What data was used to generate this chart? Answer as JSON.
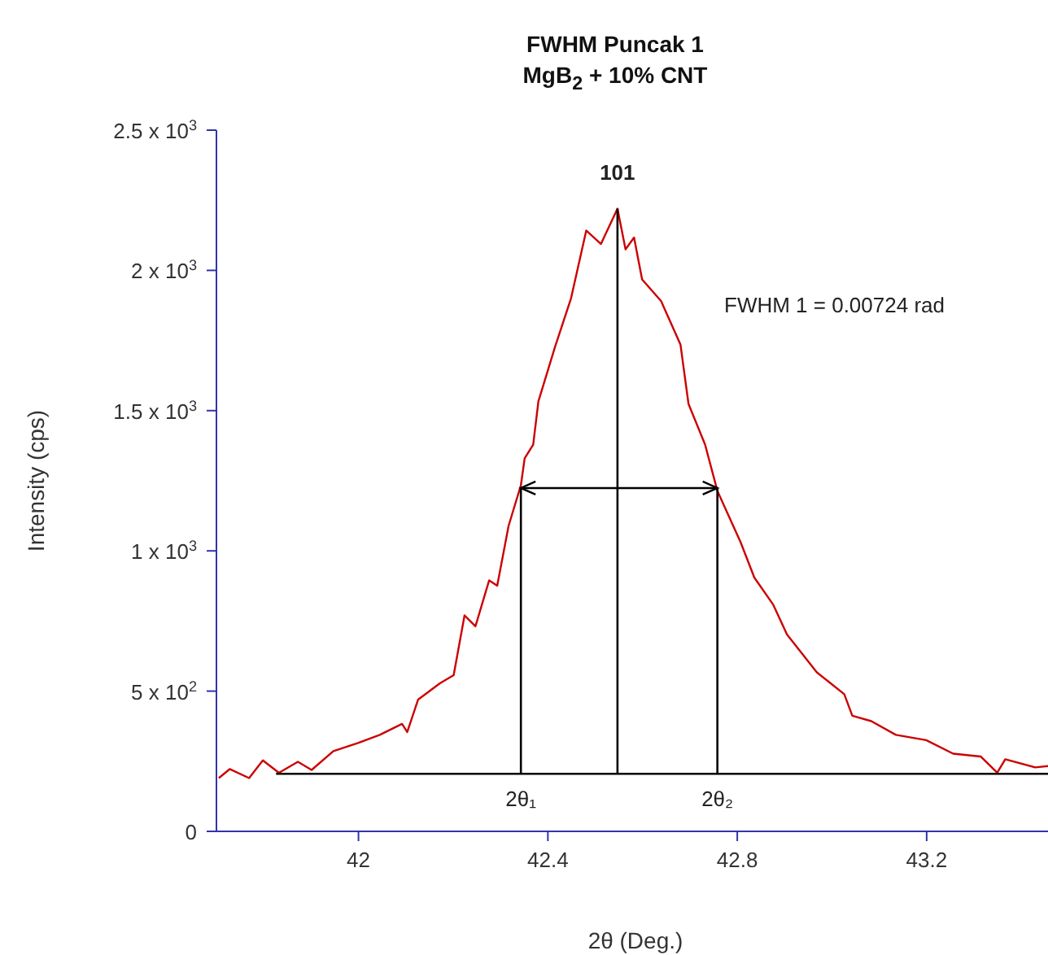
{
  "chart_data": {
    "type": "line",
    "title": "FWHM Puncak 1",
    "subtitle": "MgB$_{2}$ + 10% CNT",
    "xlabel": "2θ (Deg.)",
    "ylabel": "Intensity (cps)",
    "xlim": [
      41.7,
      43.47
    ],
    "xticks": [
      42,
      42.4,
      42.8,
      43.2
    ],
    "ylim": [
      0,
      2500
    ],
    "yticks": [
      0,
      {
        "value": 500,
        "label": "5 x 10$^{2}$"
      },
      {
        "value": 1000,
        "label": "1 x 10$^{3}$"
      },
      {
        "value": 1500,
        "label": "1.5 x 10$^{3}$"
      },
      {
        "value": 2000,
        "label": "2 x 10$^{3}$"
      },
      {
        "value": 2500,
        "label": "2.5 x 10$^{3}$"
      }
    ],
    "grid": false,
    "marker": "none",
    "series": [
      {
        "color": "#cc0000",
        "x": [
          41.705,
          41.728,
          41.769,
          41.798,
          41.832,
          41.872,
          41.901,
          41.947,
          41.999,
          42.045,
          42.092,
          42.103,
          42.126,
          42.172,
          42.201,
          42.224,
          42.247,
          42.276,
          42.293,
          42.317,
          42.343,
          42.351,
          42.369,
          42.38,
          42.415,
          42.449,
          42.481,
          42.512,
          42.547,
          42.564,
          42.582,
          42.599,
          42.639,
          42.68,
          42.697,
          42.732,
          42.758,
          42.807,
          42.836,
          42.876,
          42.905,
          42.968,
          43.026,
          43.043,
          43.083,
          43.135,
          43.199,
          43.256,
          43.314,
          43.349,
          43.366,
          43.429,
          43.464
        ],
        "values": [
          190,
          222,
          190,
          253,
          209,
          248,
          219,
          286,
          315,
          344,
          383,
          354,
          470,
          528,
          557,
          770,
          731,
          895,
          876,
          1089,
          1234,
          1330,
          1379,
          1533,
          1727,
          1901,
          2142,
          2094,
          2220,
          2075,
          2117,
          1968,
          1891,
          1736,
          1524,
          1379,
          1214,
          1031,
          905,
          808,
          702,
          567,
          489,
          412,
          393,
          344,
          325,
          277,
          267,
          209,
          257,
          228,
          234
        ]
      },
      {
        "color": "#000000",
        "x": [
          41.826,
          43.464
        ],
        "values": [
          205,
          205
        ]
      },
      {
        "color": "#000000",
        "x": [
          42.343,
          42.343
        ],
        "values": [
          205,
          1224
        ]
      },
      {
        "color": "#000000",
        "x": [
          42.547,
          42.547
        ],
        "values": [
          205,
          2220
        ]
      },
      {
        "color": "#000000",
        "x": [
          42.758,
          42.758
        ],
        "values": [
          205,
          1224
        ]
      }
    ],
    "annotations": [
      {
        "text": "101",
        "x": 42.547,
        "y": 2220
      },
      {
        "text": "2θ₁",
        "x": 42.343,
        "y": 205
      },
      {
        "text": "2θ₂",
        "x": 42.758,
        "y": 205
      },
      "FWHM 1 = 0.00724 rad"
    ]
  }
}
